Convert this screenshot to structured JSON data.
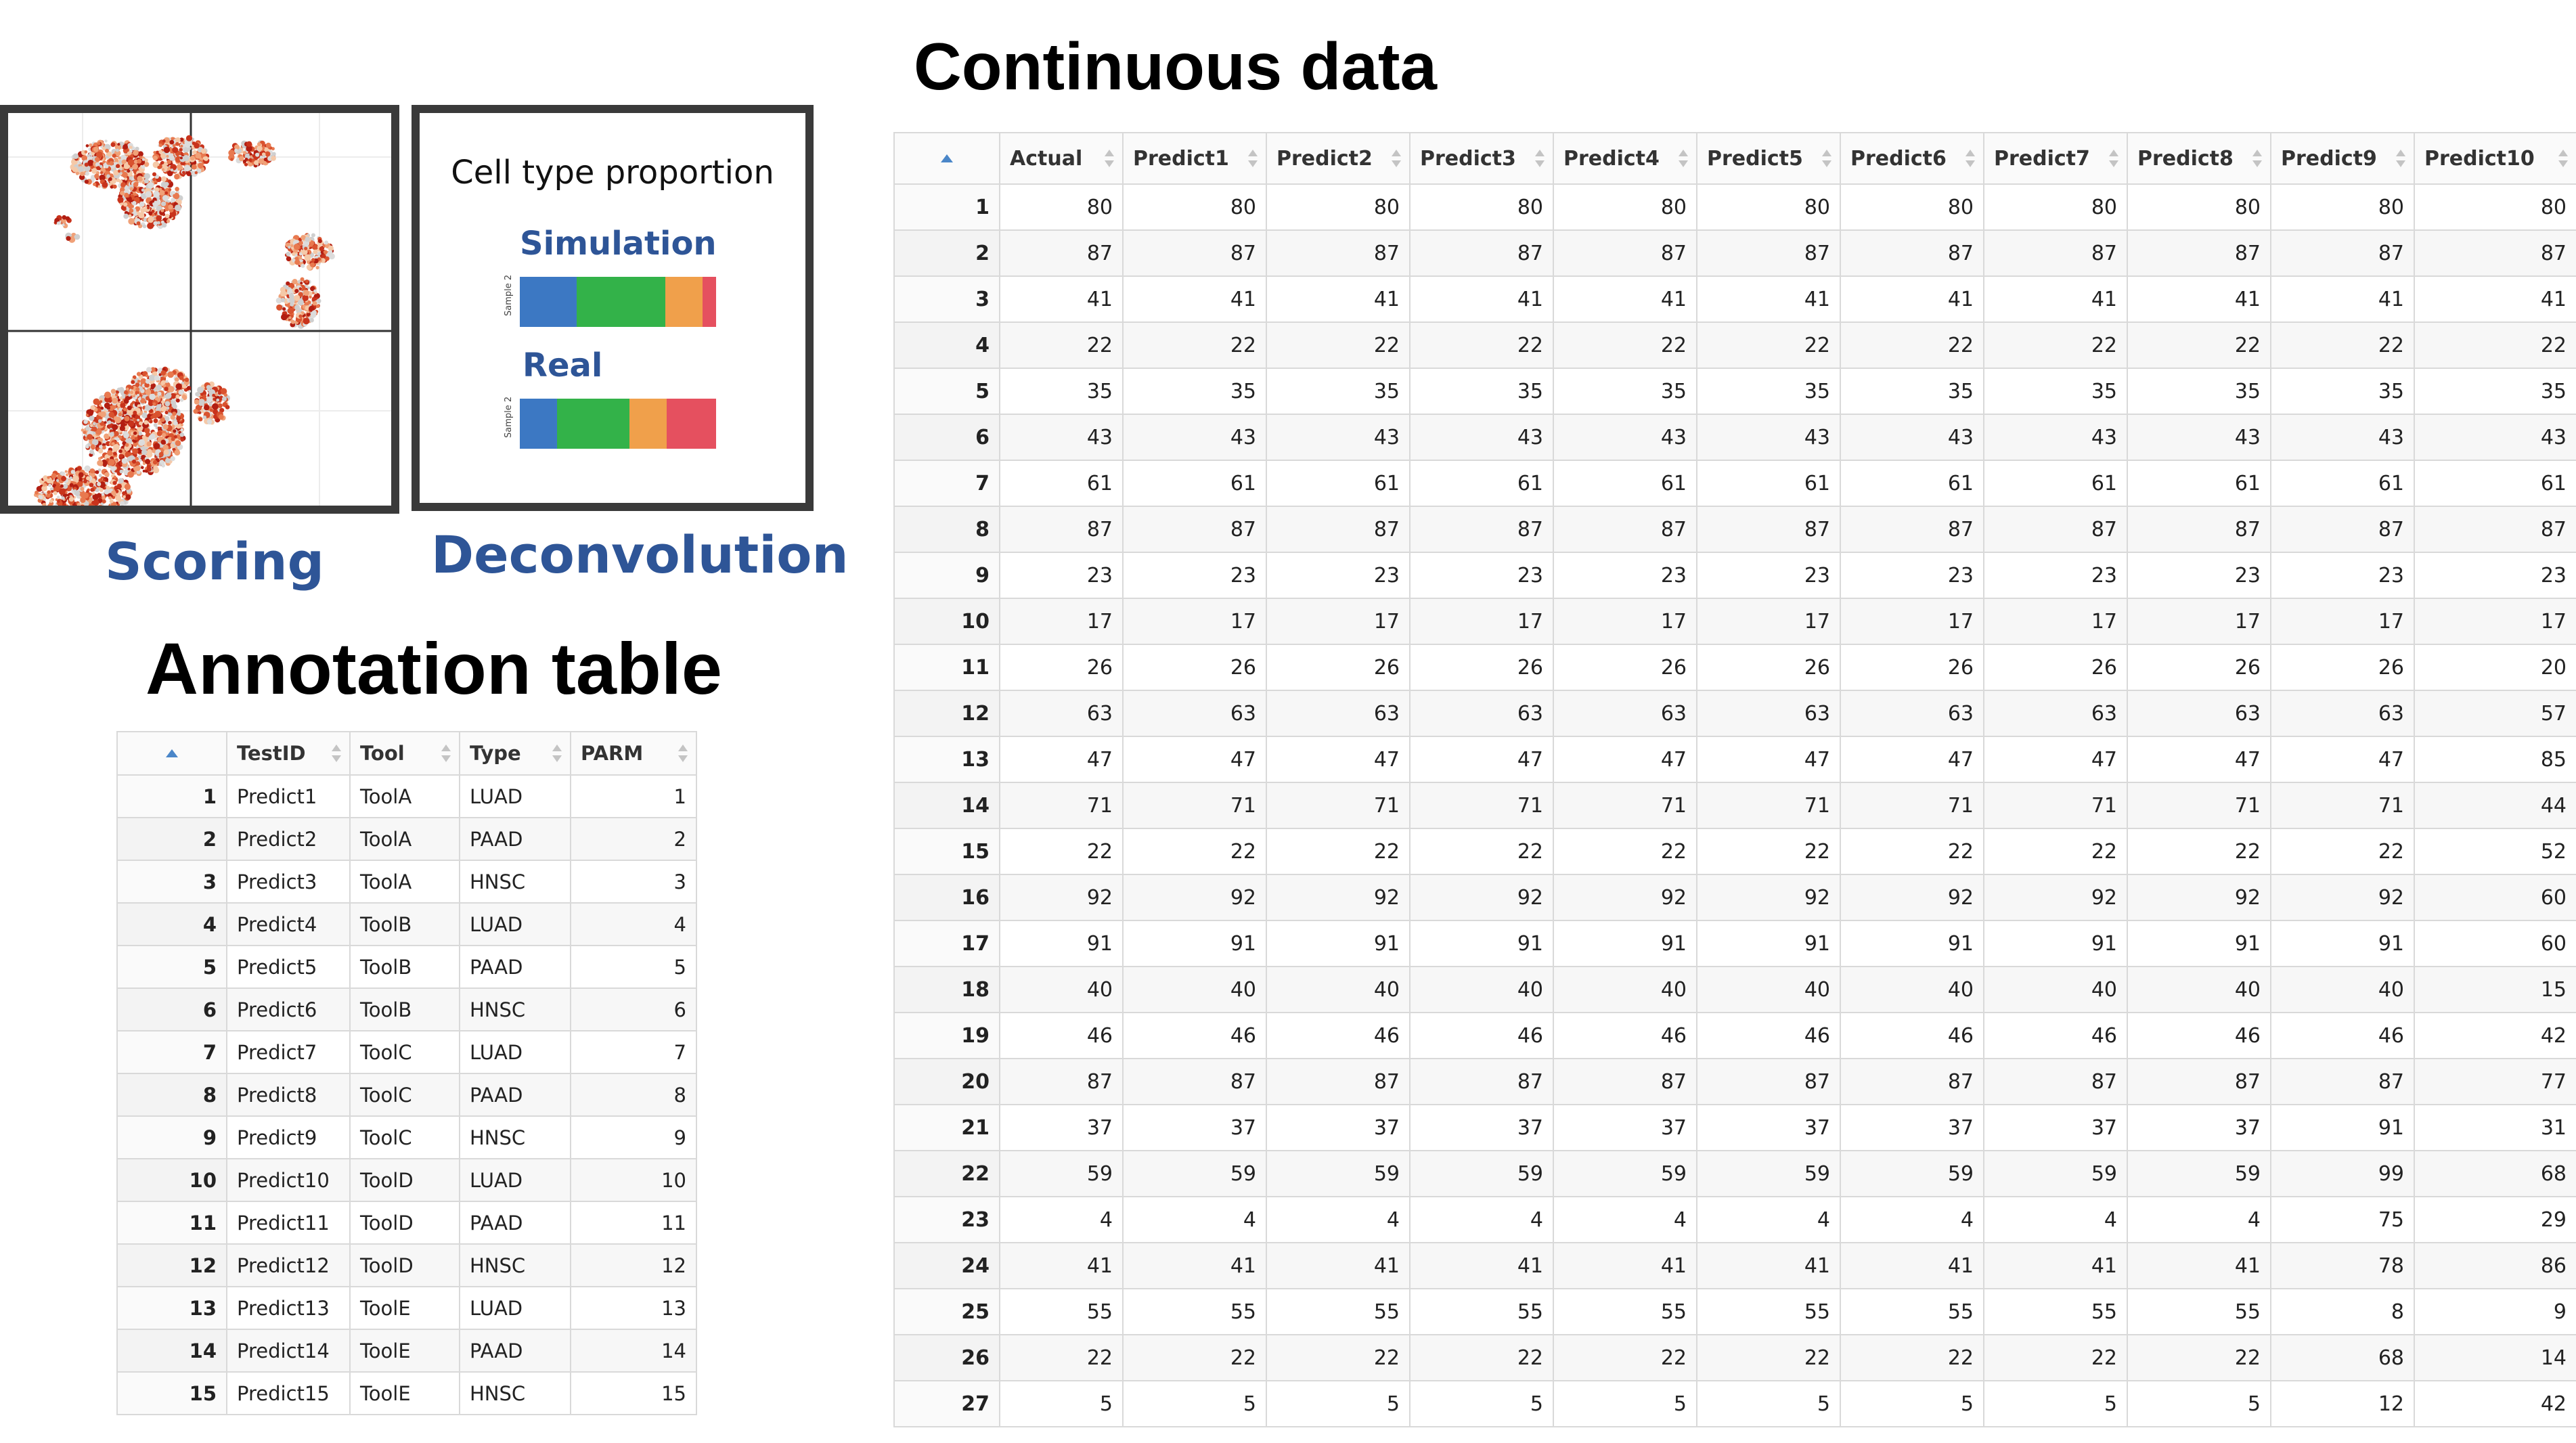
{
  "scoring": {
    "label": "Scoring"
  },
  "deconvolution": {
    "label": "Deconvolution",
    "heading": "Cell type proportion",
    "simulation_label": "Simulation",
    "real_label": "Real",
    "sample_axis_label": "Sample 2",
    "colors": [
      "#3c78c3",
      "#33b249",
      "#f0a04b",
      "#e5505f"
    ],
    "simulation_fractions": [
      0.29,
      0.45,
      0.19,
      0.07
    ],
    "real_fractions": [
      0.19,
      0.37,
      0.19,
      0.25
    ]
  },
  "annotation": {
    "title": "Annotation table",
    "columns": [
      "TestID",
      "Tool",
      "Type",
      "PARM"
    ],
    "rows": [
      [
        1,
        "Predict1",
        "ToolA",
        "LUAD",
        1
      ],
      [
        2,
        "Predict2",
        "ToolA",
        "PAAD",
        2
      ],
      [
        3,
        "Predict3",
        "ToolA",
        "HNSC",
        3
      ],
      [
        4,
        "Predict4",
        "ToolB",
        "LUAD",
        4
      ],
      [
        5,
        "Predict5",
        "ToolB",
        "PAAD",
        5
      ],
      [
        6,
        "Predict6",
        "ToolB",
        "HNSC",
        6
      ],
      [
        7,
        "Predict7",
        "ToolC",
        "LUAD",
        7
      ],
      [
        8,
        "Predict8",
        "ToolC",
        "PAAD",
        8
      ],
      [
        9,
        "Predict9",
        "ToolC",
        "HNSC",
        9
      ],
      [
        10,
        "Predict10",
        "ToolD",
        "LUAD",
        10
      ],
      [
        11,
        "Predict11",
        "ToolD",
        "PAAD",
        11
      ],
      [
        12,
        "Predict12",
        "ToolD",
        "HNSC",
        12
      ],
      [
        13,
        "Predict13",
        "ToolE",
        "LUAD",
        13
      ],
      [
        14,
        "Predict14",
        "ToolE",
        "PAAD",
        14
      ],
      [
        15,
        "Predict15",
        "ToolE",
        "HNSC",
        15
      ]
    ]
  },
  "continuous": {
    "title": "Continuous data",
    "columns": [
      "Actual",
      "Predict1",
      "Predict2",
      "Predict3",
      "Predict4",
      "Predict5",
      "Predict6",
      "Predict7",
      "Predict8",
      "Predict9",
      "Predict10"
    ],
    "rows": [
      [
        1,
        80,
        80,
        80,
        80,
        80,
        80,
        80,
        80,
        80,
        80,
        80
      ],
      [
        2,
        87,
        87,
        87,
        87,
        87,
        87,
        87,
        87,
        87,
        87,
        87
      ],
      [
        3,
        41,
        41,
        41,
        41,
        41,
        41,
        41,
        41,
        41,
        41,
        41
      ],
      [
        4,
        22,
        22,
        22,
        22,
        22,
        22,
        22,
        22,
        22,
        22,
        22
      ],
      [
        5,
        35,
        35,
        35,
        35,
        35,
        35,
        35,
        35,
        35,
        35,
        35
      ],
      [
        6,
        43,
        43,
        43,
        43,
        43,
        43,
        43,
        43,
        43,
        43,
        43
      ],
      [
        7,
        61,
        61,
        61,
        61,
        61,
        61,
        61,
        61,
        61,
        61,
        61
      ],
      [
        8,
        87,
        87,
        87,
        87,
        87,
        87,
        87,
        87,
        87,
        87,
        87
      ],
      [
        9,
        23,
        23,
        23,
        23,
        23,
        23,
        23,
        23,
        23,
        23,
        23
      ],
      [
        10,
        17,
        17,
        17,
        17,
        17,
        17,
        17,
        17,
        17,
        17,
        17
      ],
      [
        11,
        26,
        26,
        26,
        26,
        26,
        26,
        26,
        26,
        26,
        26,
        20
      ],
      [
        12,
        63,
        63,
        63,
        63,
        63,
        63,
        63,
        63,
        63,
        63,
        57
      ],
      [
        13,
        47,
        47,
        47,
        47,
        47,
        47,
        47,
        47,
        47,
        47,
        85
      ],
      [
        14,
        71,
        71,
        71,
        71,
        71,
        71,
        71,
        71,
        71,
        71,
        44
      ],
      [
        15,
        22,
        22,
        22,
        22,
        22,
        22,
        22,
        22,
        22,
        22,
        52
      ],
      [
        16,
        92,
        92,
        92,
        92,
        92,
        92,
        92,
        92,
        92,
        92,
        60
      ],
      [
        17,
        91,
        91,
        91,
        91,
        91,
        91,
        91,
        91,
        91,
        91,
        60
      ],
      [
        18,
        40,
        40,
        40,
        40,
        40,
        40,
        40,
        40,
        40,
        40,
        15
      ],
      [
        19,
        46,
        46,
        46,
        46,
        46,
        46,
        46,
        46,
        46,
        46,
        42
      ],
      [
        20,
        87,
        87,
        87,
        87,
        87,
        87,
        87,
        87,
        87,
        87,
        77
      ],
      [
        21,
        37,
        37,
        37,
        37,
        37,
        37,
        37,
        37,
        37,
        91,
        31
      ],
      [
        22,
        59,
        59,
        59,
        59,
        59,
        59,
        59,
        59,
        59,
        99,
        68
      ],
      [
        23,
        4,
        4,
        4,
        4,
        4,
        4,
        4,
        4,
        4,
        75,
        29
      ],
      [
        24,
        41,
        41,
        41,
        41,
        41,
        41,
        41,
        41,
        41,
        78,
        86
      ],
      [
        25,
        55,
        55,
        55,
        55,
        55,
        55,
        55,
        55,
        55,
        8,
        9
      ],
      [
        26,
        22,
        22,
        22,
        22,
        22,
        22,
        22,
        22,
        22,
        68,
        14
      ],
      [
        27,
        5,
        5,
        5,
        5,
        5,
        5,
        5,
        5,
        5,
        12,
        42
      ]
    ]
  }
}
